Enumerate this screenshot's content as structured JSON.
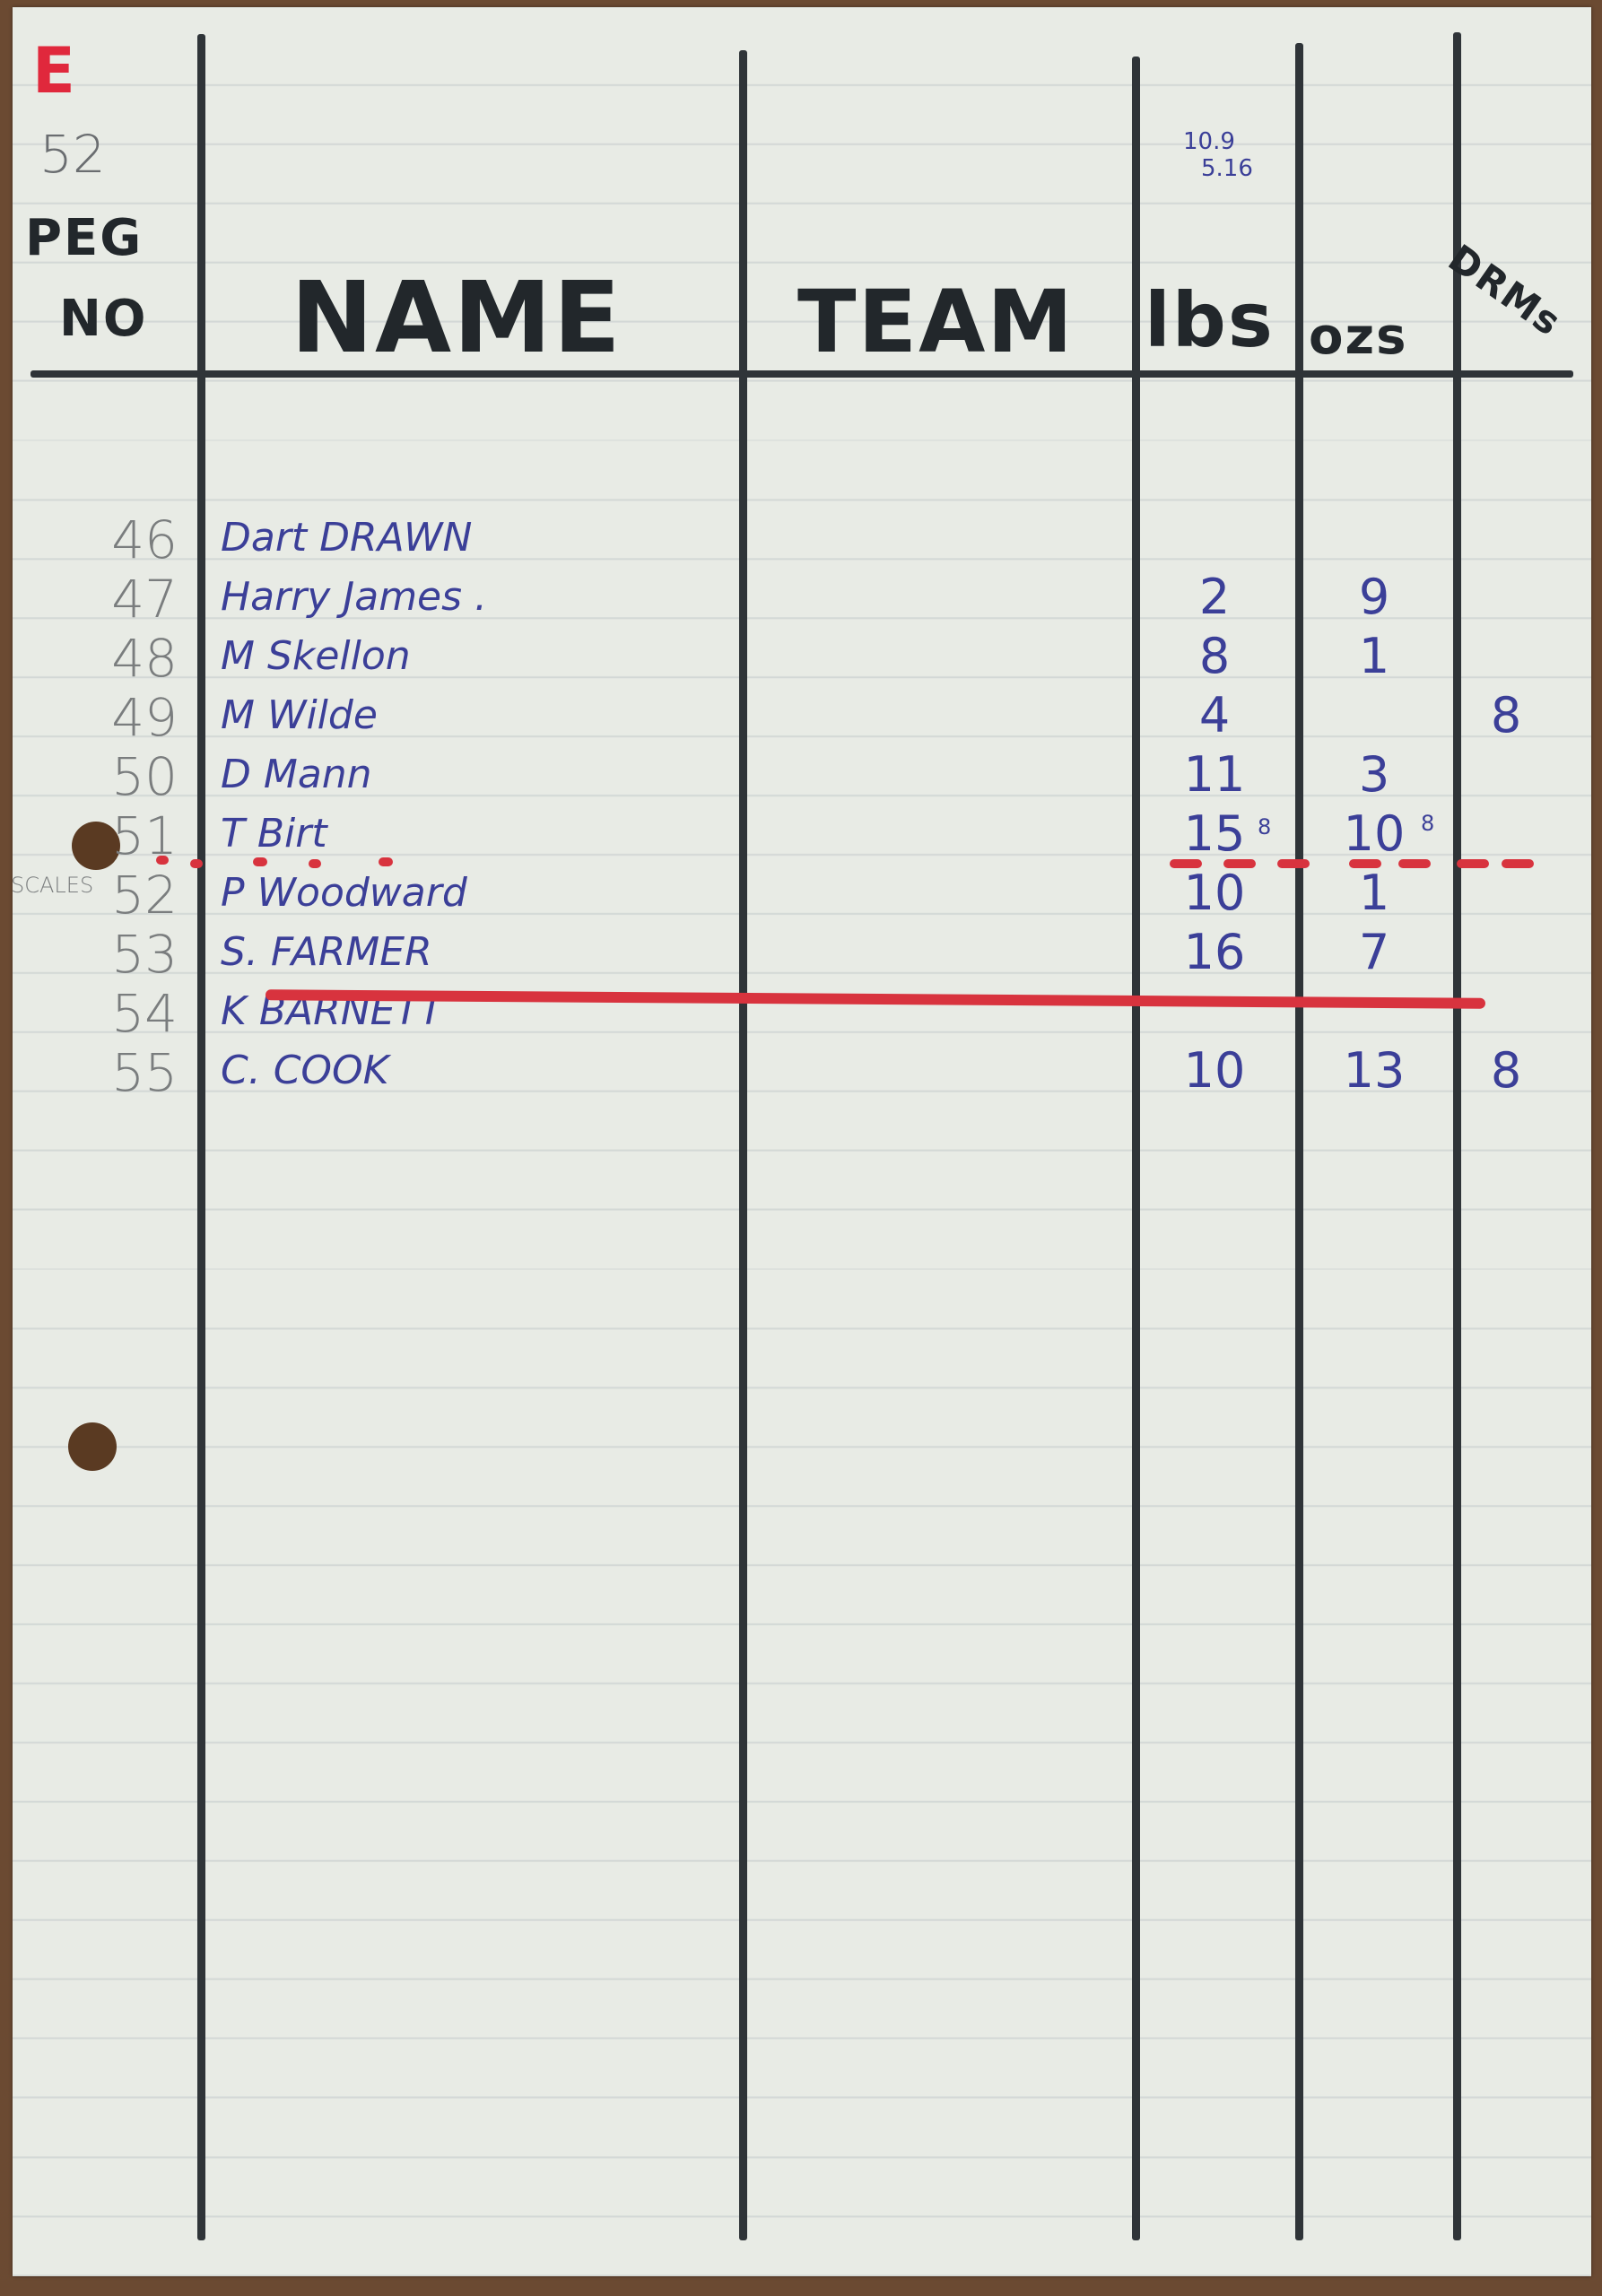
{
  "sheet": {
    "corner_mark": "E",
    "sheet_number": "52",
    "date_top": "10.9",
    "date_bottom": "5.16",
    "side_note": "SCALES"
  },
  "headers": {
    "peg_line1": "PEG",
    "peg_line2": "NO",
    "name": "NAME",
    "team": "TEAM",
    "lbs": "lbs",
    "ozs": "ozs",
    "drams": "DRMs"
  },
  "rows": [
    {
      "peg": "46",
      "name": "Dart DRAWN",
      "lbs": "",
      "ozs": "",
      "drams": ""
    },
    {
      "peg": "47",
      "name": "Harry James .",
      "lbs": "2",
      "ozs": "9",
      "drams": ""
    },
    {
      "peg": "48",
      "name": "M  Skellon",
      "lbs": "8",
      "ozs": "1",
      "drams": ""
    },
    {
      "peg": "49",
      "name": "M  Wilde",
      "lbs": "4",
      "ozs": "",
      "drams": "8"
    },
    {
      "peg": "50",
      "name": "D  Mann",
      "lbs": "11",
      "ozs": "3",
      "drams": ""
    },
    {
      "peg": "51",
      "name": "T  Birt",
      "lbs": "15",
      "lbs_note": "8",
      "ozs": "10",
      "ozs_note": "8",
      "drams": ""
    },
    {
      "peg": "52",
      "name": "P  Woodward",
      "lbs": "10",
      "ozs": "1",
      "drams": ""
    },
    {
      "peg": "53",
      "name": "S. FARMER",
      "lbs": "16",
      "ozs": "7",
      "drams": ""
    },
    {
      "peg": "54",
      "name": "K  BARNETT",
      "lbs": "",
      "ozs": "",
      "drams": ""
    },
    {
      "peg": "55",
      "name": "C. COOK",
      "lbs": "10",
      "ozs": "13",
      "drams": "8"
    }
  ],
  "colors": {
    "ink_blue": "#3b3f98",
    "pencil": "#7a7d7e",
    "red_marker": "#d8333e",
    "paper": "#e8ebe5"
  }
}
